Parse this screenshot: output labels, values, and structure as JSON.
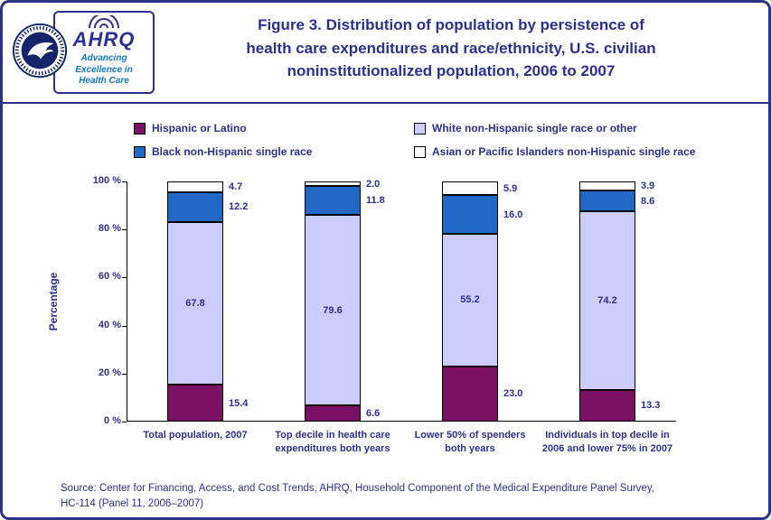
{
  "header": {
    "logo": {
      "org": "AHRQ",
      "tagline_lines": [
        "Advancing",
        "Excellence in",
        "Health Care"
      ]
    },
    "title_lines": [
      "Figure 3. Distribution of population by persistence of",
      "health care expenditures and race/ethnicity, U.S. civilian",
      "noninstitutionalized population, 2006 to 2007"
    ]
  },
  "legend": [
    {
      "label": "Hispanic or Latino",
      "color": "#7B1164"
    },
    {
      "label": "White non-Hispanic single race or other",
      "color": "#CCCCFF"
    },
    {
      "label": "Black non-Hispanic single race",
      "color": "#2169C4"
    },
    {
      "label": "Asian or Pacific Islanders non-Hispanic single race",
      "color": "#FFFFFF"
    }
  ],
  "chart_data": {
    "type": "bar",
    "stacked": true,
    "title": "Figure 3. Distribution of population by persistence of health care expenditures and race/ethnicity, U.S. civilian noninstitutionalized population, 2006 to 2007",
    "ylabel": "Percentage",
    "ylim": [
      0,
      100
    ],
    "grid": false,
    "legend_position": "top",
    "yticks": [
      {
        "value": 0,
        "label": "0 %"
      },
      {
        "value": 20,
        "label": "20 %"
      },
      {
        "value": 40,
        "label": "40 %"
      },
      {
        "value": 60,
        "label": "60 %"
      },
      {
        "value": 80,
        "label": "80 %"
      },
      {
        "value": 100,
        "label": "100 %"
      }
    ],
    "categories": [
      [
        "Total population, 2007"
      ],
      [
        "Top decile in health care",
        "expenditures both years"
      ],
      [
        "Lower 50% of spenders",
        "both years"
      ],
      [
        "Individuals in top decile in",
        "2006 and lower 75% in 2007"
      ]
    ],
    "series": [
      {
        "name": "Hispanic or Latino",
        "color": "#7B1164",
        "values": [
          15.4,
          6.6,
          23.0,
          13.3
        ]
      },
      {
        "name": "White non-Hispanic single race or other",
        "color": "#CCCCFF",
        "values": [
          67.8,
          79.6,
          55.2,
          74.2
        ]
      },
      {
        "name": "Black non-Hispanic single race",
        "color": "#2169C4",
        "values": [
          12.2,
          11.8,
          16.0,
          8.6
        ]
      },
      {
        "name": "Asian or Pacific Islanders non-Hispanic single race",
        "color": "#FFFFFF",
        "values": [
          4.7,
          2.0,
          5.9,
          3.9
        ]
      }
    ]
  },
  "source_lines": [
    "Source: Center for Financing, Access, and Cost Trends, AHRQ, Household Component of the Medical Expenditure Panel Survey,",
    "HC-114 (Panel 11, 2006–2007)"
  ]
}
